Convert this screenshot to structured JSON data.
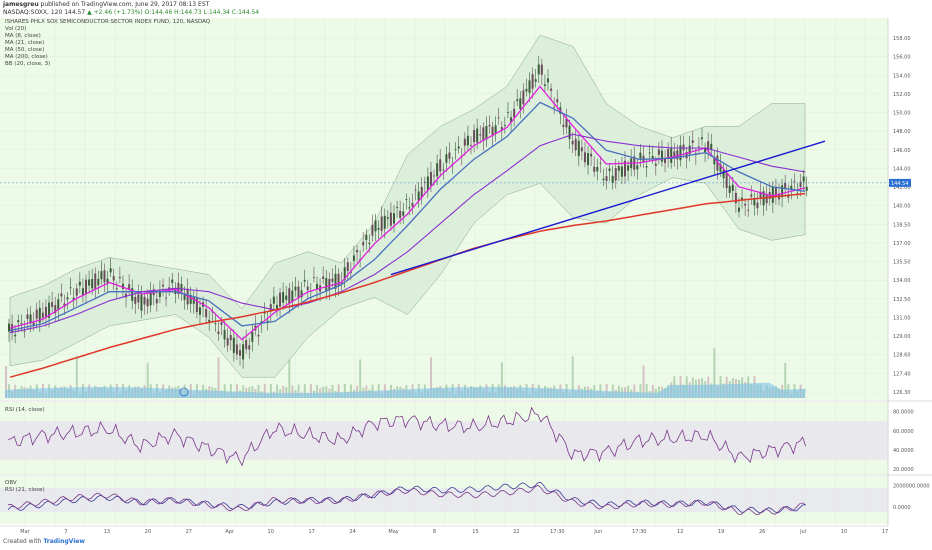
{
  "header": {
    "author": "jamesgreu",
    "published": "published on TradingView.com, June 29, 2017 08:13 EST",
    "symbol_line": "NASDAQ:SOXX, 120  144.57",
    "change": "▲ +2.46 (+1.73%)",
    "ohlc": "O:144.46  H:144.73  L:144.34  C:144.54"
  },
  "indicators_legend": [
    "ISHARES PHLX SOX SEMICONDUCTOR SECTOR INDEX FUND, 120, NASDAQ",
    "Vol (20)",
    "MA (8, close)",
    "MA (21, close)",
    "MA (50, close)",
    "MA (200, close)",
    "BB (20, close, 3)"
  ],
  "rsi_label": "RSI (14, close)",
  "obv_labels": [
    "OBV",
    "RSI (21, close)"
  ],
  "footer": {
    "created": "Created with",
    "brand": "TradingView"
  },
  "colors": {
    "background": "#eefae8",
    "candle_up": "#3b5c3b",
    "candle_down": "#6b4b5b",
    "ma8": "#e020e0",
    "ma21": "#4a6fbf",
    "ma50": "#8b2fd0",
    "ma200": "#e0362a",
    "bb_fill": "#cfe8d2",
    "trendline": "#1a1ad0",
    "volume": "#7fc2e8",
    "rsi": "#7a3a8a"
  },
  "chart_data": [
    {
      "type": "candlestick",
      "title": "ISHARES PHLX SOX SEMICONDUCTOR SECTOR INDEX FUND, 120, NASDAQ",
      "y_ticks": [
        "158.00",
        "156.00",
        "154.00",
        "152.00",
        "150.00",
        "148.00",
        "146.00",
        "144.00",
        "142.00",
        "140.00",
        "138.50",
        "137.00",
        "135.50",
        "134.00",
        "132.50",
        "131.00",
        "129.00",
        "128.60",
        "127.40",
        "126.30"
      ],
      "x_ticks": [
        "Mar",
        "7",
        "13",
        "20",
        "27",
        "Apr",
        "10",
        "17",
        "24",
        "May",
        "8",
        "15",
        "22",
        "17:30",
        "Jun",
        "17:30",
        "12",
        "19",
        "26",
        "Jul",
        "10",
        "17"
      ],
      "last_price_label": "144.54",
      "series": [
        {
          "name": "Price",
          "x": [
            0,
            10,
            20,
            30,
            40,
            50,
            60,
            70,
            80,
            90,
            100,
            110,
            120,
            130,
            140,
            150,
            160,
            170,
            180,
            190,
            200,
            210,
            220,
            230,
            240
          ],
          "y": [
            131.5,
            133.0,
            135.0,
            136.5,
            134.0,
            135.5,
            133.0,
            129.5,
            134.0,
            135.5,
            136.0,
            140.5,
            142.5,
            146.0,
            148.5,
            150.0,
            154.5,
            148.0,
            145.0,
            146.5,
            147.0,
            148.0,
            142.5,
            143.5,
            144.5
          ]
        },
        {
          "name": "MA (8, close)",
          "y": [
            131.8,
            132.6,
            134.4,
            135.8,
            134.8,
            135.2,
            133.6,
            130.8,
            133.2,
            135.0,
            135.8,
            139.2,
            141.8,
            145.2,
            147.8,
            149.4,
            153.0,
            149.5,
            146.2,
            146.3,
            146.8,
            147.6,
            144.2,
            143.4,
            144.1
          ]
        },
        {
          "name": "MA (21, close)",
          "y": [
            131.6,
            132.2,
            133.6,
            135.0,
            135.0,
            135.0,
            134.2,
            132.0,
            132.4,
            134.4,
            135.6,
            137.8,
            140.8,
            144.0,
            146.6,
            148.6,
            151.6,
            150.2,
            147.4,
            146.6,
            146.7,
            147.2,
            145.5,
            144.2,
            143.8
          ]
        },
        {
          "name": "MA (50, close)",
          "y": [
            131.4,
            132.0,
            133.0,
            134.2,
            135.0,
            135.3,
            135.0,
            134.0,
            133.4,
            134.0,
            135.0,
            136.5,
            138.5,
            141.0,
            143.5,
            145.6,
            147.8,
            148.8,
            148.2,
            147.8,
            147.6,
            147.6,
            146.8,
            146.0,
            145.5
          ]
        },
        {
          "name": "MA (200, close)",
          "y": [
            127.5,
            128.3,
            129.2,
            130.1,
            130.9,
            131.7,
            132.3,
            132.8,
            133.4,
            134.1,
            134.9,
            135.8,
            136.8,
            137.8,
            138.8,
            139.6,
            140.3,
            140.8,
            141.2,
            141.7,
            142.2,
            142.7,
            143.0,
            143.3,
            143.6
          ]
        },
        {
          "name": "BB upper",
          "y": [
            134.5,
            135.5,
            137.0,
            138.0,
            137.5,
            137.0,
            136.5,
            133.5,
            137.5,
            138.5,
            137.5,
            141.0,
            147.0,
            149.5,
            151.0,
            153.0,
            157.5,
            156.5,
            151.5,
            149.5,
            148.5,
            149.5,
            149.5,
            151.5,
            151.5
          ]
        },
        {
          "name": "BB lower",
          "y": [
            128.5,
            129.0,
            130.5,
            132.0,
            132.5,
            133.0,
            131.0,
            127.5,
            127.5,
            131.0,
            133.5,
            134.5,
            133.0,
            136.5,
            141.0,
            143.5,
            144.5,
            141.5,
            141.0,
            143.5,
            145.0,
            144.5,
            140.5,
            139.5,
            140.0
          ]
        }
      ]
    },
    {
      "type": "line",
      "title": "RSI (14, close)",
      "y_ticks": [
        "80.0000",
        "60.0000",
        "40.0000",
        "20.0000"
      ],
      "series": [
        {
          "name": "RSI (14, close)",
          "x": [
            0,
            10,
            20,
            30,
            40,
            50,
            60,
            70,
            80,
            90,
            100,
            110,
            120,
            130,
            140,
            150,
            160,
            170,
            180,
            190,
            200,
            210,
            220,
            230,
            240
          ],
          "y": [
            48,
            55,
            58,
            62,
            44,
            56,
            42,
            30,
            62,
            56,
            50,
            68,
            72,
            66,
            64,
            70,
            78,
            35,
            38,
            50,
            52,
            55,
            32,
            40,
            48
          ]
        }
      ]
    },
    {
      "type": "line",
      "title": "OBV",
      "y_ticks": [
        "2000000.0000",
        "0.0000"
      ],
      "series": [
        {
          "name": "OBV",
          "y": [
            0.3,
            0.4,
            0.5,
            0.55,
            0.45,
            0.5,
            0.42,
            0.35,
            0.45,
            0.5,
            0.5,
            0.6,
            0.75,
            0.7,
            0.72,
            0.78,
            0.82,
            0.5,
            0.4,
            0.45,
            0.42,
            0.45,
            0.3,
            0.28,
            0.35
          ]
        },
        {
          "name": "RSI (21, close)",
          "y": [
            0.35,
            0.45,
            0.55,
            0.6,
            0.45,
            0.5,
            0.4,
            0.3,
            0.5,
            0.48,
            0.48,
            0.62,
            0.7,
            0.62,
            0.6,
            0.65,
            0.75,
            0.45,
            0.35,
            0.42,
            0.4,
            0.45,
            0.25,
            0.25,
            0.4
          ]
        }
      ]
    }
  ]
}
